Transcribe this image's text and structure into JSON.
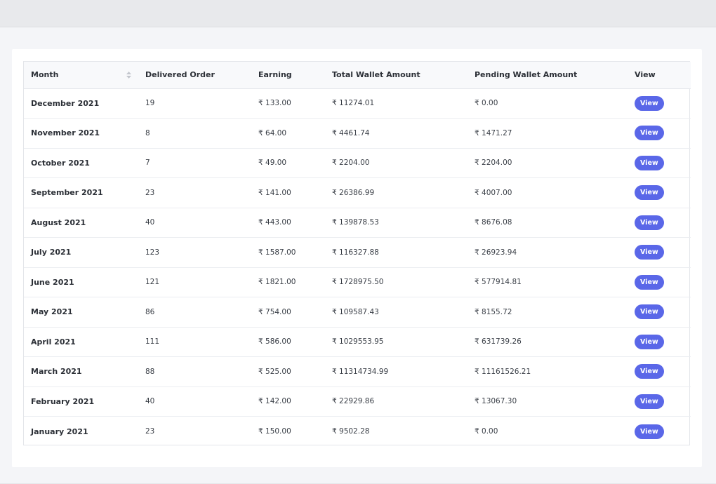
{
  "header": {
    "month": "Month",
    "delivered": "Delivered Order",
    "earning": "Earning",
    "total_wallet": "Total Wallet Amount",
    "pending_wallet": "Pending Wallet Amount",
    "view": "View"
  },
  "currency_symbol": "₹",
  "view_label": "View",
  "accent_color": "#5a67e8",
  "rows": [
    {
      "month": "December 2021",
      "delivered": "19",
      "earning": "₹ 133.00",
      "total": "₹ 11274.01",
      "pending": "₹ 0.00"
    },
    {
      "month": "November 2021",
      "delivered": "8",
      "earning": "₹ 64.00",
      "total": "₹ 4461.74",
      "pending": "₹ 1471.27"
    },
    {
      "month": "October 2021",
      "delivered": "7",
      "earning": "₹ 49.00",
      "total": "₹ 2204.00",
      "pending": "₹ 2204.00"
    },
    {
      "month": "September 2021",
      "delivered": "23",
      "earning": "₹ 141.00",
      "total": "₹ 26386.99",
      "pending": "₹ 4007.00"
    },
    {
      "month": "August 2021",
      "delivered": "40",
      "earning": "₹ 443.00",
      "total": "₹ 139878.53",
      "pending": "₹ 8676.08"
    },
    {
      "month": "July 2021",
      "delivered": "123",
      "earning": "₹ 1587.00",
      "total": "₹ 116327.88",
      "pending": "₹ 26923.94"
    },
    {
      "month": "June 2021",
      "delivered": "121",
      "earning": "₹ 1821.00",
      "total": "₹ 1728975.50",
      "pending": "₹ 577914.81"
    },
    {
      "month": "May 2021",
      "delivered": "86",
      "earning": "₹ 754.00",
      "total": "₹ 109587.43",
      "pending": "₹ 8155.72"
    },
    {
      "month": "April 2021",
      "delivered": "111",
      "earning": "₹ 586.00",
      "total": "₹ 1029553.95",
      "pending": "₹ 631739.26"
    },
    {
      "month": "March 2021",
      "delivered": "88",
      "earning": "₹ 525.00",
      "total": "₹ 11314734.99",
      "pending": "₹ 11161526.21"
    },
    {
      "month": "February 2021",
      "delivered": "40",
      "earning": "₹ 142.00",
      "total": "₹ 22929.86",
      "pending": "₹ 13067.30"
    },
    {
      "month": "January 2021",
      "delivered": "23",
      "earning": "₹ 150.00",
      "total": "₹ 9502.28",
      "pending": "₹ 0.00"
    }
  ]
}
